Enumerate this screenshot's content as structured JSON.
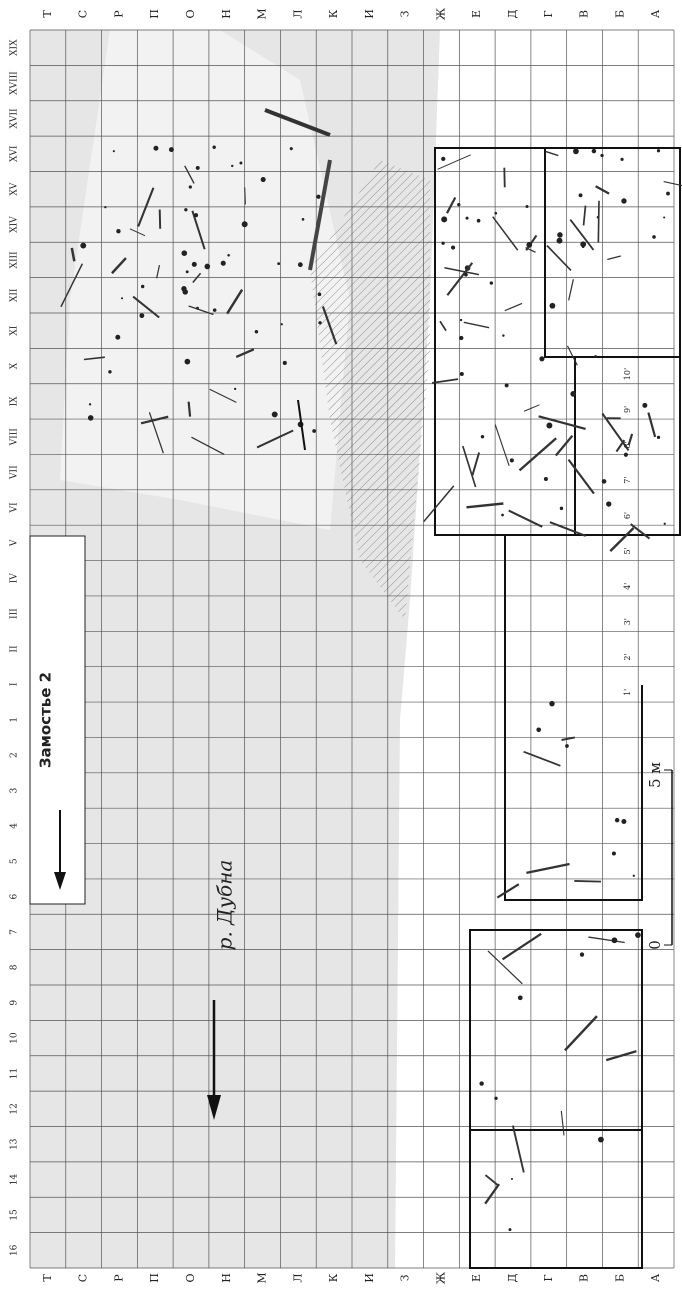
{
  "columns": [
    "Т",
    "С",
    "Р",
    "П",
    "О",
    "Н",
    "М",
    "Л",
    "К",
    "И",
    "З",
    "Ж",
    "Е",
    "Д",
    "Г",
    "В",
    "Б",
    "А"
  ],
  "rows_left": [
    "XIX",
    "XVIII",
    "XVII",
    "XVI",
    "XV",
    "XIV",
    "XIII",
    "XII",
    "XI",
    "X",
    "IX",
    "VIII",
    "VII",
    "VI",
    "V",
    "IV",
    "III",
    "II",
    "I",
    "1",
    "2",
    "3",
    "4",
    "5",
    "6",
    "7",
    "8",
    "9",
    "10",
    "11",
    "12",
    "13",
    "14",
    "15",
    "16"
  ],
  "rows_right": [
    "10'",
    "9'",
    "8'",
    "7'",
    "6'",
    "5'",
    "4'",
    "3'",
    "2'",
    "1'"
  ],
  "site_label": "Замостье 2",
  "river_label": "р. Дубна",
  "scale": {
    "top": "5 м",
    "bottom": "0"
  }
}
